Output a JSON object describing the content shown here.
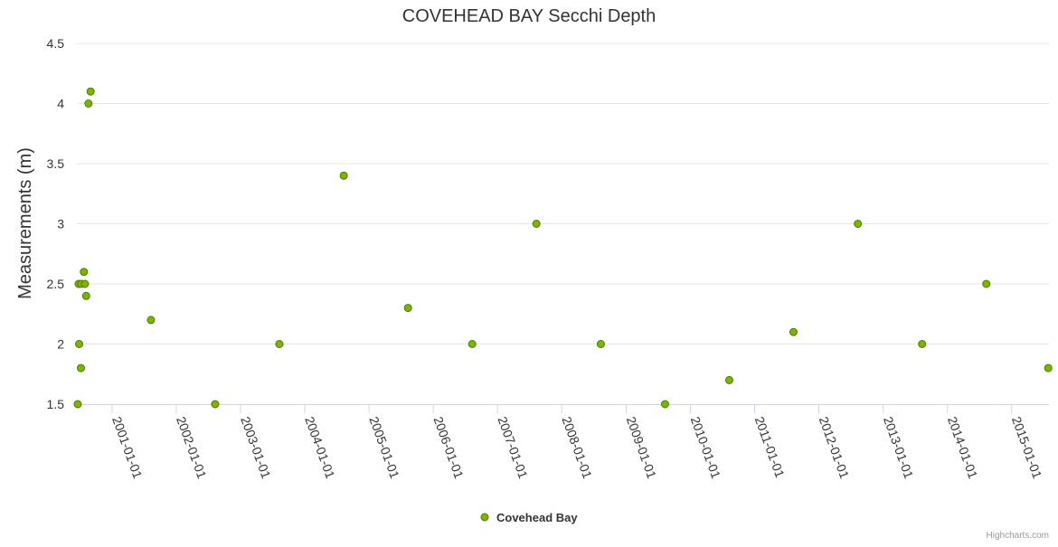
{
  "chart_data": {
    "type": "scatter",
    "title": "COVEHEAD BAY Secchi Depth",
    "ylabel": "Measurements (m)",
    "xlabel": "",
    "ylim": [
      1.5,
      4.5
    ],
    "yticks": [
      "1.5",
      "2",
      "2.5",
      "3",
      "3.5",
      "4",
      "4.5"
    ],
    "xlim": [
      "2000-06-15",
      "2015-08-01"
    ],
    "xticks": [
      "2001-01-01",
      "2002-01-01",
      "2003-01-01",
      "2004-01-01",
      "2005-01-01",
      "2006-01-01",
      "2007-01-01",
      "2008-01-01",
      "2009-01-01",
      "2010-01-01",
      "2011-01-01",
      "2012-01-01",
      "2013-01-01",
      "2014-01-01",
      "2015-01-01"
    ],
    "grid": true,
    "legend_position": "bottom-center",
    "marker_color": "#7cb405",
    "marker_stroke": "#4e7a00",
    "series": [
      {
        "name": "Covehead Bay",
        "points": [
          {
            "x": "2000-06-20",
            "y": 1.5
          },
          {
            "x": "2000-06-25",
            "y": 2.5
          },
          {
            "x": "2000-06-28",
            "y": 2.0
          },
          {
            "x": "2000-07-08",
            "y": 1.8
          },
          {
            "x": "2000-07-10",
            "y": 2.5
          },
          {
            "x": "2000-07-25",
            "y": 2.6
          },
          {
            "x": "2000-07-31",
            "y": 2.5
          },
          {
            "x": "2000-08-07",
            "y": 2.4
          },
          {
            "x": "2000-08-20",
            "y": 4.0
          },
          {
            "x": "2000-09-01",
            "y": 4.1
          },
          {
            "x": "2001-08-10",
            "y": 2.2
          },
          {
            "x": "2002-08-10",
            "y": 1.5
          },
          {
            "x": "2003-08-10",
            "y": 2.0
          },
          {
            "x": "2004-08-10",
            "y": 3.4
          },
          {
            "x": "2005-08-10",
            "y": 2.3
          },
          {
            "x": "2006-08-10",
            "y": 2.0
          },
          {
            "x": "2007-08-10",
            "y": 3.0
          },
          {
            "x": "2008-08-10",
            "y": 2.0
          },
          {
            "x": "2009-08-10",
            "y": 1.5
          },
          {
            "x": "2010-08-10",
            "y": 1.7
          },
          {
            "x": "2011-08-10",
            "y": 2.1
          },
          {
            "x": "2012-08-10",
            "y": 3.0
          },
          {
            "x": "2013-08-10",
            "y": 2.0
          },
          {
            "x": "2014-08-10",
            "y": 2.5
          },
          {
            "x": "2015-07-28",
            "y": 1.8
          }
        ]
      }
    ]
  },
  "credits": "Highcharts.com"
}
